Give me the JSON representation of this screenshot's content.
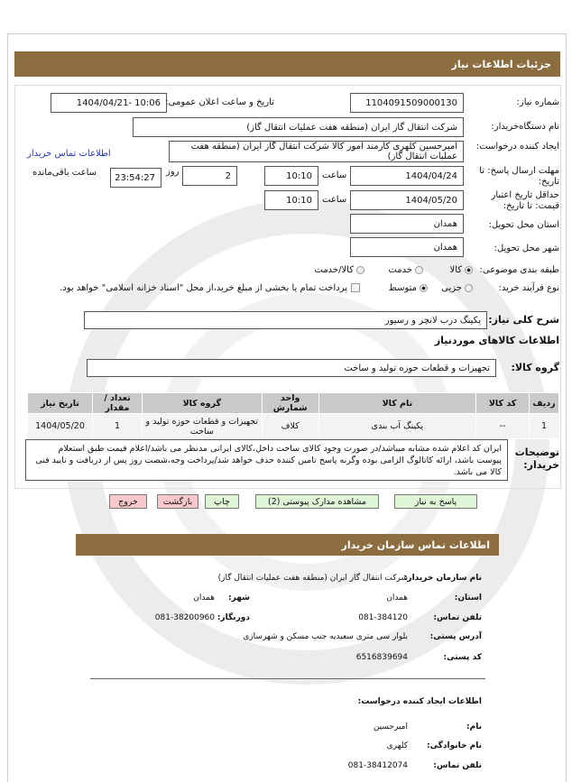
{
  "header": {
    "title": "جزئیات اطلاعات نیاز"
  },
  "form": {
    "need_number_label": "شماره نیاز:",
    "need_number": "1104091509000130",
    "announce_label": "تاریخ و ساعت اعلان عمومی:",
    "announce_value": "1404/04/21- 10:06",
    "buyer_label": "نام دستگاه‌خریدار:",
    "buyer_value": "شرکت انتقال گاز ایران (منطقه هفت عملیات انتقال گاز)",
    "requester_label": "ایجاد کننده درخواست:",
    "requester_value": "امیرحسین کلهری کارمند امور کالا شرکت انتقال گاز ایران (منطقه هفت عملیات انتقال گاز)",
    "contact_link": "اطلاعات تماس خریدار",
    "deadline_label": "مهلت ارسال پاسخ: تا تاریخ:",
    "deadline_date": "1404/04/24",
    "time_label": "ساعت",
    "deadline_time": "10:10",
    "days_value": "2",
    "days_label": "روز",
    "remaining_value": "23:54:27",
    "remaining_label": "ساعت باقی‌مانده",
    "validity_label": "حداقل تاریخ اعتبار قیمت: تا تاریخ:",
    "validity_date": "1404/05/20",
    "validity_time": "10:10",
    "province_label": "استان محل تحویل:",
    "province_value": "همدان",
    "city_label": "شهر محل تحویل:",
    "city_value": "همدان",
    "category_label": "طبقه بندی موضوعی:",
    "category_options": [
      "کالا",
      "خدمت",
      "کالا/خدمت"
    ],
    "category_selected": "کالا",
    "process_label": "نوع فرآیند خرید:",
    "process_options": [
      "جزیی",
      "متوسط"
    ],
    "process_selected": "متوسط",
    "payment_note": "پرداخت تمام یا بخشی از مبلغ خرید،از محل \"اسناد خزانه اسلامی\" خواهد بود."
  },
  "description": {
    "label": "شرح کلی نیاز:",
    "value": "پکینگ درب لانچر و رسیور"
  },
  "goods": {
    "section_title": "اطلاعات کالاهای موردنیاز",
    "group_label": "گروه کالا:",
    "group_value": "تجهیزات و قطعات حوزه تولید و ساخت",
    "columns": [
      "ردیف",
      "کد کالا",
      "نام کالا",
      "واحد شمارش",
      "گروه کالا",
      "تعداد / مقدار",
      "تاریخ نیاز"
    ],
    "rows": [
      [
        "1",
        "--",
        "پکینگ آب بندی",
        "کلاف",
        "تجهیزات و قطعات حوزه تولید و ساخت",
        "1",
        "1404/05/20"
      ]
    ]
  },
  "notes": {
    "label": "توضیحات خریدار:",
    "value": "ایران کد اعلام شده مشابه میباشد/در صورت وجود کالای ساخت داخل،کالای ایرانی مدنظر می باشد/اعلام قیمت طبق استعلام پیوست باشد، ارائه کاتالوگ الزامی بوده وگرنه پاسخ تامین کننده حذف خواهد شد/پرداخت وجه،شصت روز پس از دریافت و تایید فنی کالا می باشد."
  },
  "buttons": {
    "reply": "پاسخ به نیاز",
    "attachments": "مشاهده مدارک پیوستی (2)",
    "print": "چاپ",
    "back": "بازگشت",
    "exit": "خروج"
  },
  "contact": {
    "title": "اطلاعات تماس سازمان خریدار",
    "org_label": "نام سازمان خریدار:",
    "org_value": "شرکت انتقال گاز ایران (منطقه هفت عملیات انتقال گاز)",
    "province_label": "استان:",
    "province_value": "همدان",
    "city_label": "شهر:",
    "city_value": "همدان",
    "phone_label": "تلفن تماس:",
    "phone_value": "081-384120",
    "fax_label": "دورنگار:",
    "fax_value": "081-38200960",
    "address_label": "آدرس پستی:",
    "address_value": "بلوار سی متری سعیدیه جنب مسکن و شهرسازی",
    "postal_label": "کد پستی:",
    "postal_value": "6516839694",
    "creator_title": "اطلاعات ایجاد کننده درخواست:",
    "name_label": "نام:",
    "name_value": "امیرحسین",
    "family_label": "نام خانوادگی:",
    "family_value": "کلهری",
    "creator_phone_label": "تلفن تماس:",
    "creator_phone_value": "081-38412074"
  },
  "colors": {
    "header_bar": "#8c6d3f",
    "green_button": "#dff5d8",
    "pink_button": "#f7c9cd"
  }
}
